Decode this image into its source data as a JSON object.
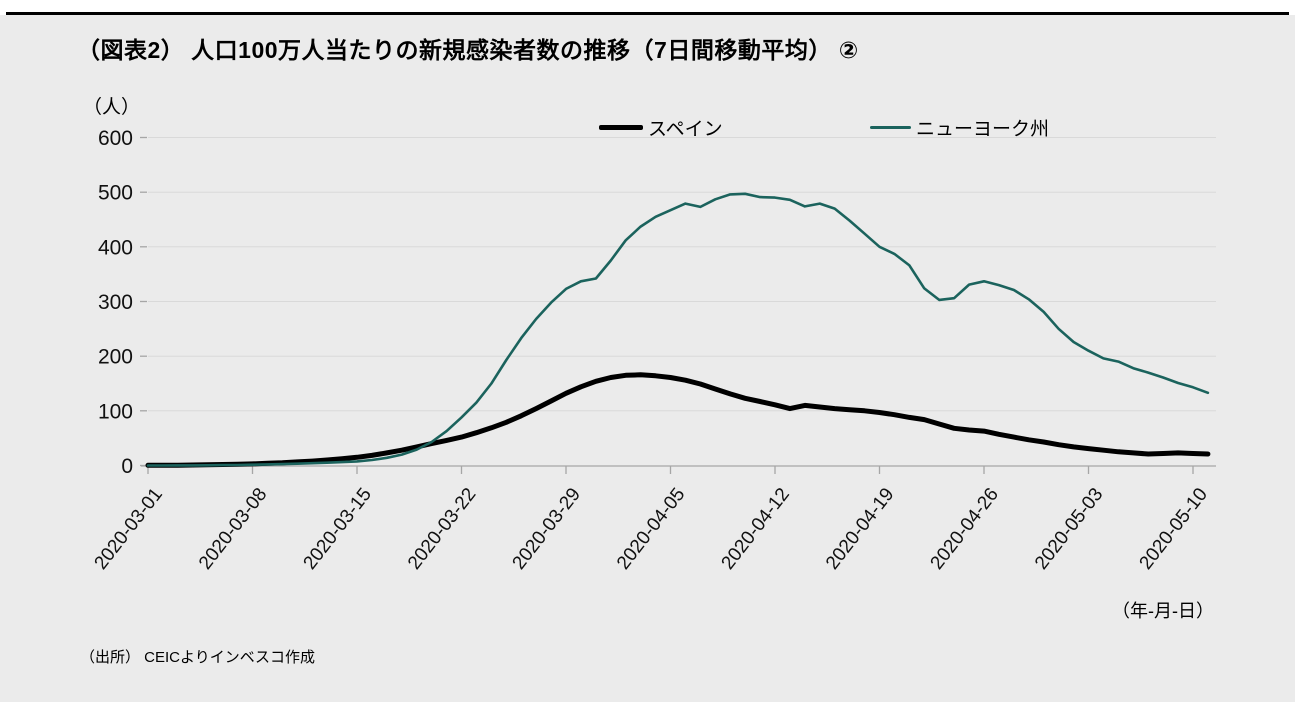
{
  "page": {
    "panel_color": "#ebebeb",
    "background_color": "#ffffff"
  },
  "chart_data": {
    "type": "line",
    "title": "（図表2） 人口100万人当たりの新規感染者数の推移（7日間移動平均） ②",
    "ylabel_unit": "（人）",
    "xlabel_note": "（年-月-日）",
    "source": "（出所） CEICよりインベスコ作成",
    "ylim": [
      0,
      600
    ],
    "yticks": [
      0,
      100,
      200,
      300,
      400,
      500,
      600
    ],
    "grid": "horizontal",
    "grid_color": "#d9d9d9",
    "axis_color": "#a6a6a6",
    "legend_position": "top-center",
    "xtick_labels": [
      "2020-03-01",
      "2020-03-08",
      "2020-03-15",
      "2020-03-22",
      "2020-03-29",
      "2020-04-05",
      "2020-04-12",
      "2020-04-19",
      "2020-04-26",
      "2020-05-03",
      "2020-05-10"
    ],
    "x_dates": [
      "2020-03-01",
      "2020-03-02",
      "2020-03-03",
      "2020-03-04",
      "2020-03-05",
      "2020-03-06",
      "2020-03-07",
      "2020-03-08",
      "2020-03-09",
      "2020-03-10",
      "2020-03-11",
      "2020-03-12",
      "2020-03-13",
      "2020-03-14",
      "2020-03-15",
      "2020-03-16",
      "2020-03-17",
      "2020-03-18",
      "2020-03-19",
      "2020-03-20",
      "2020-03-21",
      "2020-03-22",
      "2020-03-23",
      "2020-03-24",
      "2020-03-25",
      "2020-03-26",
      "2020-03-27",
      "2020-03-28",
      "2020-03-29",
      "2020-03-30",
      "2020-03-31",
      "2020-04-01",
      "2020-04-02",
      "2020-04-03",
      "2020-04-04",
      "2020-04-05",
      "2020-04-06",
      "2020-04-07",
      "2020-04-08",
      "2020-04-09",
      "2020-04-10",
      "2020-04-11",
      "2020-04-12",
      "2020-04-13",
      "2020-04-14",
      "2020-04-15",
      "2020-04-16",
      "2020-04-17",
      "2020-04-18",
      "2020-04-19",
      "2020-04-20",
      "2020-04-21",
      "2020-04-22",
      "2020-04-23",
      "2020-04-24",
      "2020-04-25",
      "2020-04-26",
      "2020-04-27",
      "2020-04-28",
      "2020-04-29",
      "2020-04-30",
      "2020-05-01",
      "2020-05-02",
      "2020-05-03",
      "2020-05-04",
      "2020-05-05",
      "2020-05-06",
      "2020-05-07",
      "2020-05-08",
      "2020-05-09",
      "2020-05-10",
      "2020-05-11"
    ],
    "series": [
      {
        "name": "スペイン",
        "color": "#000000",
        "line_width": 5,
        "values": [
          0.3,
          0.4,
          0.6,
          0.9,
          1.3,
          1.8,
          2.4,
          3,
          4,
          5,
          6.5,
          8,
          10,
          12.5,
          15,
          18.5,
          23,
          28,
          34,
          40,
          46,
          52,
          60,
          69,
          79,
          91,
          104,
          118,
          132,
          144,
          154,
          161,
          165,
          166,
          164,
          161,
          156,
          149,
          140,
          131,
          123,
          117,
          111,
          104,
          110,
          107,
          104,
          102,
          100,
          97,
          93,
          88,
          84,
          76,
          68,
          65,
          63,
          57,
          52,
          47,
          43,
          38,
          34,
          31,
          28,
          25,
          23,
          21,
          22,
          23,
          22,
          21
        ]
      },
      {
        "name": "ニューヨーク州",
        "color": "#1b635d",
        "line_width": 2.6,
        "values": [
          0,
          0,
          0.1,
          0.2,
          0.4,
          0.7,
          1,
          1.4,
          2,
          2.6,
          3.3,
          4.2,
          5.2,
          6.3,
          7.5,
          10,
          14,
          20,
          29,
          43,
          63,
          88,
          115,
          150,
          193,
          233,
          268,
          298,
          323,
          337,
          342,
          375,
          412,
          437,
          455,
          467,
          479,
          473,
          487,
          496,
          497,
          491,
          490,
          486,
          474,
          479,
          470,
          448,
          424,
          400,
          387,
          366,
          324,
          303,
          306,
          331,
          337,
          330,
          321,
          304,
          281,
          250,
          226,
          210,
          196,
          190,
          178,
          170,
          161,
          151,
          143,
          133
        ]
      }
    ]
  }
}
